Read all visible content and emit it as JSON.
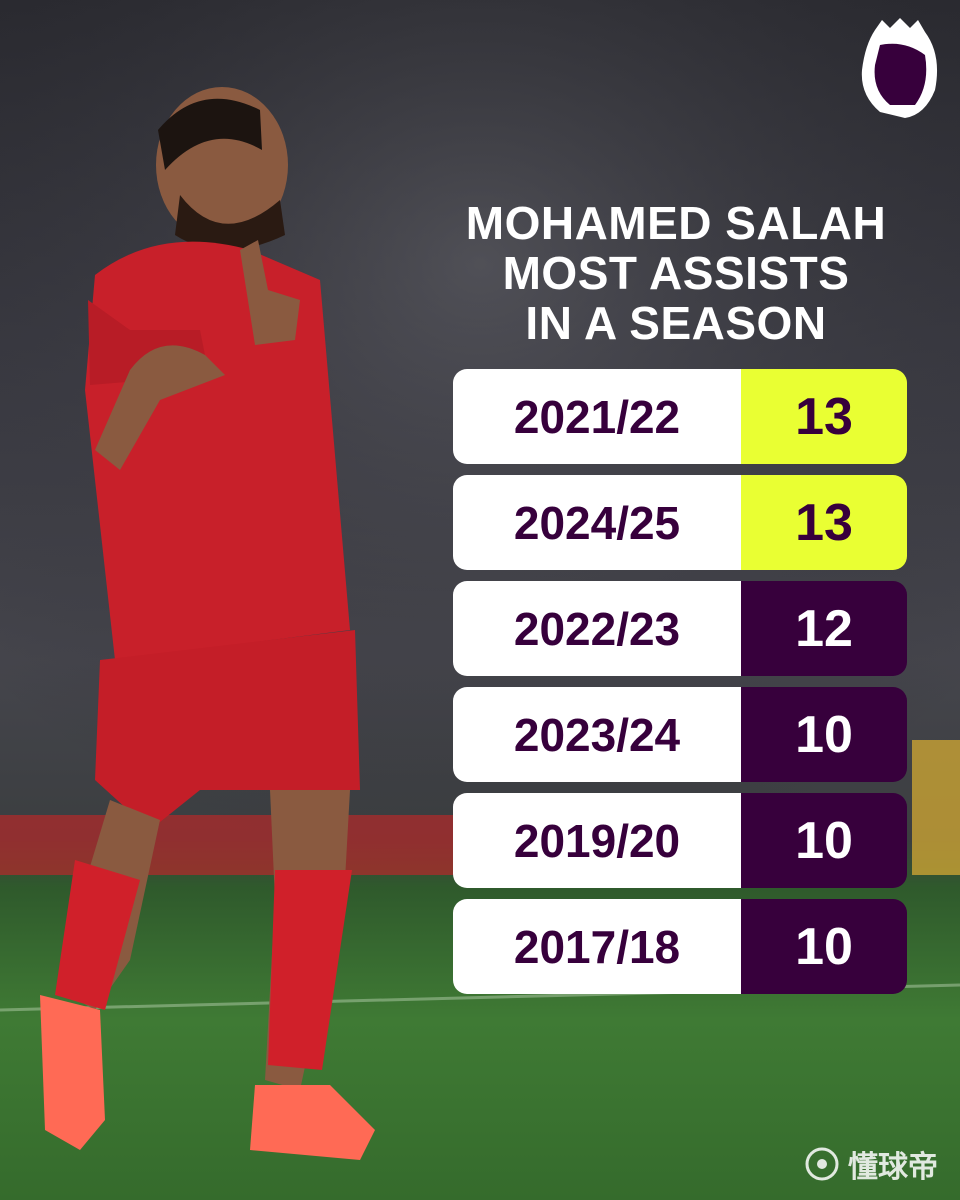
{
  "header": {
    "title_lines": [
      "MOHAMED SALAH",
      "MOST ASSISTS",
      "IN A SEASON"
    ]
  },
  "table": {
    "rows": [
      {
        "season": "2021/22",
        "assists": 13,
        "color": "#e9ff33",
        "text_color": "#37003c"
      },
      {
        "season": "2024/25",
        "assists": 13,
        "color": "#e9ff33",
        "text_color": "#37003c"
      },
      {
        "season": "2022/23",
        "assists": 12,
        "color": "#37003c",
        "text_color": "#ffffff"
      },
      {
        "season": "2023/24",
        "assists": 10,
        "color": "#37003c",
        "text_color": "#ffffff"
      },
      {
        "season": "2019/20",
        "assists": 10,
        "color": "#37003c",
        "text_color": "#ffffff"
      },
      {
        "season": "2017/18",
        "assists": 10,
        "color": "#37003c",
        "text_color": "#ffffff"
      }
    ]
  },
  "watermark": "懂球帝"
}
